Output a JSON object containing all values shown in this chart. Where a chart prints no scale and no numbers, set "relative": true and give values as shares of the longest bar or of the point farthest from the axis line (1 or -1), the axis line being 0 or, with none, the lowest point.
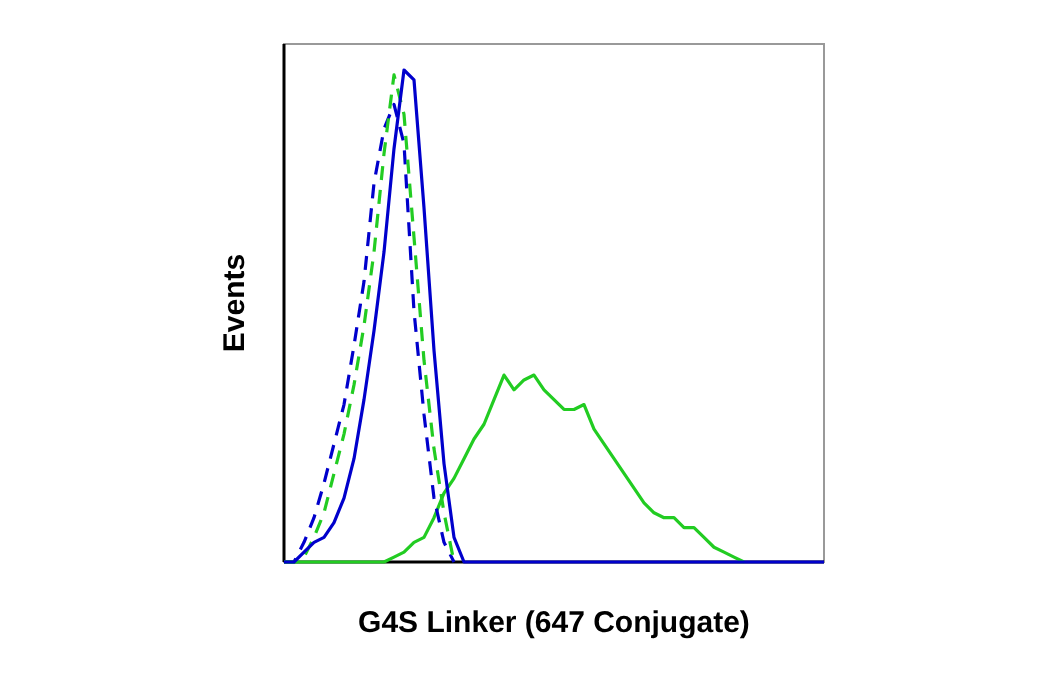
{
  "chart_data": {
    "type": "line",
    "relative": true,
    "xlabel": "G4S Linker (647 Conjugate)",
    "ylabel": "Events",
    "categories": [
      null,
      null,
      null,
      null,
      null,
      null,
      null,
      null,
      null,
      null,
      null,
      null,
      null,
      null,
      null,
      null,
      null,
      null,
      null,
      null,
      null,
      null,
      null,
      null,
      null,
      null,
      null,
      null,
      null,
      null,
      null,
      null,
      null,
      null,
      null,
      null,
      null,
      null,
      null,
      null,
      null,
      null,
      null,
      null,
      null,
      null,
      null,
      null,
      null,
      null,
      null,
      null,
      null,
      null,
      null
    ],
    "series": [
      {
        "color": "#22cc22",
        "line_style": "solid",
        "values": [
          0,
          0,
          0,
          0,
          0,
          0,
          0,
          0,
          0,
          0,
          0,
          0.01,
          0.02,
          0.04,
          0.05,
          0.09,
          0.14,
          0.17,
          0.21,
          0.25,
          0.28,
          0.33,
          0.38,
          0.35,
          0.37,
          0.38,
          0.35,
          0.33,
          0.31,
          0.31,
          0.32,
          0.27,
          0.24,
          0.21,
          0.18,
          0.15,
          0.12,
          0.1,
          0.09,
          0.09,
          0.07,
          0.07,
          0.05,
          0.03,
          0.02,
          0.01,
          0,
          null,
          null,
          null,
          null,
          null,
          null,
          null,
          null
        ]
      },
      {
        "color": "#0000cc",
        "line_style": "dashed",
        "values": [
          0,
          0,
          0.04,
          0.09,
          0.16,
          0.24,
          0.32,
          0.44,
          0.57,
          0.77,
          0.88,
          0.93,
          0.85,
          0.51,
          0.3,
          0.13,
          0.04,
          0,
          null,
          null,
          null,
          null,
          null,
          null,
          null,
          null,
          null,
          null,
          null,
          null,
          null,
          null,
          null,
          null,
          null,
          null,
          null,
          null,
          null,
          null,
          null,
          null,
          null,
          null,
          null,
          null,
          null,
          null,
          null,
          null,
          null,
          null,
          null,
          null,
          null
        ]
      },
      {
        "color": "#22cc22",
        "line_style": "dashed",
        "values": [
          0,
          0,
          0.01,
          0.05,
          0.1,
          0.18,
          0.26,
          0.36,
          0.48,
          0.63,
          0.83,
          0.99,
          0.91,
          0.66,
          0.41,
          0.23,
          0.1,
          0,
          null,
          null,
          null,
          null,
          null,
          null,
          null,
          null,
          null,
          null,
          null,
          null,
          null,
          null,
          null,
          null,
          null,
          null,
          null,
          null,
          null,
          null,
          null,
          null,
          null,
          null,
          null,
          null,
          null,
          null,
          null,
          null,
          null,
          null,
          null,
          null,
          null
        ]
      },
      {
        "color": "#0000cc",
        "line_style": "solid",
        "values": [
          0,
          0,
          0.02,
          0.04,
          0.05,
          0.08,
          0.13,
          0.21,
          0.33,
          0.47,
          0.63,
          0.84,
          1,
          0.98,
          0.72,
          0.43,
          0.2,
          0.05,
          0,
          0,
          0,
          0,
          0,
          0,
          0,
          0,
          0,
          0,
          0,
          0,
          0,
          0,
          0,
          0,
          0,
          0,
          0,
          0,
          0,
          0,
          0,
          0,
          0,
          0,
          0,
          0,
          0,
          0,
          0,
          0,
          0,
          0,
          0,
          0,
          0
        ]
      }
    ]
  }
}
